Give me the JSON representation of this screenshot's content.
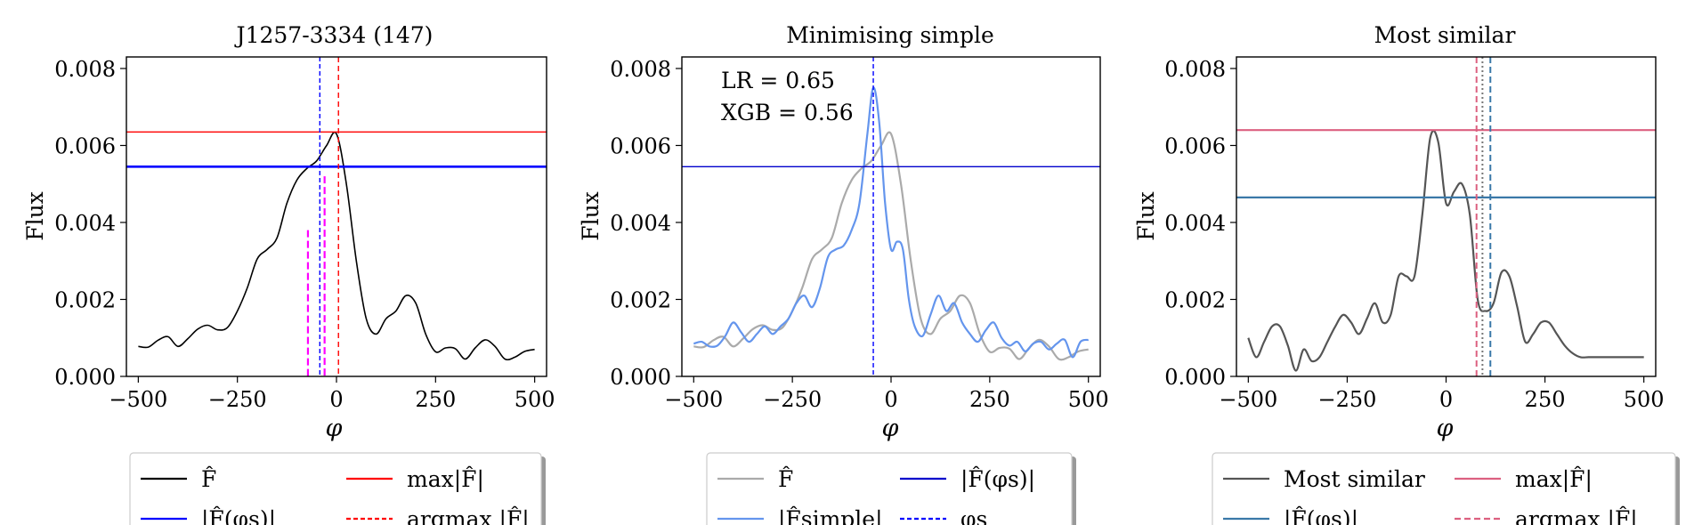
{
  "chart_data": [
    {
      "type": "line",
      "title": "J1257-3334 (147)",
      "xlabel": "φ",
      "ylabel": "Flux",
      "xlim": [
        -530,
        530
      ],
      "ylim": [
        0,
        0.0083
      ],
      "xticks": [
        -500,
        -250,
        0,
        250,
        500
      ],
      "xtick_labels": [
        "−500",
        "−250",
        "0",
        "250",
        "500"
      ],
      "yticks": [
        0,
        0.002,
        0.004,
        0.006,
        0.008
      ],
      "ytick_labels": [
        "0.000",
        "0.002",
        "0.004",
        "0.006",
        "0.008"
      ],
      "series": [
        {
          "name": "F̂",
          "color": "#000000",
          "width": 1.6,
          "x": [
            -500,
            -475,
            -450,
            -425,
            -400,
            -375,
            -350,
            -325,
            -300,
            -275,
            -250,
            -225,
            -200,
            -175,
            -150,
            -125,
            -100,
            -75,
            -50,
            -25,
            0,
            25,
            50,
            75,
            100,
            125,
            150,
            175,
            200,
            225,
            250,
            275,
            300,
            325,
            350,
            375,
            400,
            425,
            450,
            475,
            500
          ],
          "y": [
            0.00078,
            0.00076,
            0.00094,
            0.00103,
            0.00078,
            0.00098,
            0.00123,
            0.00133,
            0.00121,
            0.00127,
            0.0017,
            0.0023,
            0.00305,
            0.0033,
            0.0036,
            0.0045,
            0.0051,
            0.0054,
            0.0056,
            0.006,
            0.0063,
            0.005,
            0.003,
            0.0015,
            0.0011,
            0.0015,
            0.0017,
            0.0021,
            0.0019,
            0.0011,
            0.00064,
            0.00074,
            0.00072,
            0.00045,
            0.00074,
            0.00095,
            0.00078,
            0.00045,
            0.0005,
            0.00065,
            0.0007
          ]
        }
      ],
      "hlines": [
        {
          "name": "max|F̂|",
          "y": 0.00635,
          "color": "#ff0000",
          "width": 1.4
        },
        {
          "name": "|F̂(φs)|",
          "y": 0.00545,
          "color": "#0000ff",
          "width": 2.6
        }
      ],
      "vlines": [
        {
          "name": "argmax |F̂|",
          "x": 5,
          "color": "#ff0000",
          "dash": "6,4",
          "width": 1.4
        },
        {
          "name": "φs",
          "x": -42,
          "color": "#0000ff",
          "dash": "5,3",
          "width": 1.4
        },
        {
          "name": "magenta-a",
          "x": -72,
          "y1": 0.0038,
          "color": "#ff00ff",
          "dash": "8,4",
          "width": 2.2
        },
        {
          "name": "magenta-b",
          "x": -30,
          "y1": 0.0052,
          "color": "#ff00ff",
          "dash": "8,4",
          "width": 2.2
        }
      ],
      "legend": {
        "entries": [
          {
            "label": "F̂",
            "color": "#000000",
            "dash": ""
          },
          {
            "label": "max|F̂|",
            "color": "#ff0000",
            "dash": ""
          },
          {
            "label": "|F̂(φs)|",
            "color": "#0000ff",
            "dash": ""
          },
          {
            "label": "argmax |F̂|",
            "color": "#ff0000",
            "dash": "5,3"
          }
        ]
      },
      "annotations": []
    },
    {
      "type": "line",
      "title": "Minimising simple",
      "xlabel": "φ",
      "ylabel": "Flux",
      "xlim": [
        -530,
        530
      ],
      "ylim": [
        0,
        0.0083
      ],
      "xticks": [
        -500,
        -250,
        0,
        250,
        500
      ],
      "xtick_labels": [
        "−500",
        "−250",
        "0",
        "250",
        "500"
      ],
      "yticks": [
        0,
        0.002,
        0.004,
        0.006,
        0.008
      ],
      "ytick_labels": [
        "0.000",
        "0.002",
        "0.004",
        "0.006",
        "0.008"
      ],
      "series": [
        {
          "name": "F̂",
          "color": "#aaaaaa",
          "width": 2.2,
          "x": [
            -500,
            -475,
            -450,
            -425,
            -400,
            -375,
            -350,
            -325,
            -300,
            -275,
            -250,
            -225,
            -200,
            -175,
            -150,
            -125,
            -100,
            -75,
            -50,
            -25,
            0,
            25,
            50,
            75,
            100,
            125,
            150,
            175,
            200,
            225,
            250,
            275,
            300,
            325,
            350,
            375,
            400,
            425,
            450,
            475,
            500
          ],
          "y": [
            0.00078,
            0.00076,
            0.00094,
            0.00103,
            0.00078,
            0.00098,
            0.00123,
            0.00133,
            0.00121,
            0.00127,
            0.0017,
            0.0023,
            0.00305,
            0.0033,
            0.0036,
            0.0045,
            0.0051,
            0.0054,
            0.0056,
            0.006,
            0.0063,
            0.005,
            0.003,
            0.0015,
            0.0011,
            0.0015,
            0.0017,
            0.0021,
            0.0019,
            0.0011,
            0.00064,
            0.00074,
            0.00072,
            0.00045,
            0.00074,
            0.00095,
            0.00078,
            0.00045,
            0.0005,
            0.00065,
            0.0007
          ]
        },
        {
          "name": "|F̂simple|",
          "color": "#6495ed",
          "width": 2.2,
          "x": [
            -500,
            -480,
            -460,
            -440,
            -420,
            -400,
            -380,
            -360,
            -340,
            -320,
            -300,
            -280,
            -260,
            -240,
            -220,
            -200,
            -180,
            -160,
            -140,
            -120,
            -100,
            -80,
            -60,
            -45,
            -30,
            -15,
            0,
            15,
            30,
            45,
            60,
            80,
            100,
            120,
            140,
            160,
            180,
            200,
            220,
            240,
            260,
            280,
            300,
            320,
            340,
            360,
            380,
            400,
            420,
            440,
            460,
            480,
            500
          ],
          "y": [
            0.00085,
            0.0009,
            0.00078,
            0.0008,
            0.00105,
            0.0014,
            0.00115,
            0.0009,
            0.0011,
            0.0013,
            0.0011,
            0.0013,
            0.0015,
            0.0019,
            0.0021,
            0.0018,
            0.0023,
            0.0031,
            0.0033,
            0.0034,
            0.0038,
            0.0045,
            0.0063,
            0.0075,
            0.0066,
            0.0045,
            0.0033,
            0.0035,
            0.0033,
            0.002,
            0.0013,
            0.00105,
            0.0016,
            0.0021,
            0.0017,
            0.0019,
            0.0014,
            0.0011,
            0.0009,
            0.0012,
            0.0014,
            0.001,
            0.0008,
            0.0009,
            0.00065,
            0.00085,
            0.0009,
            0.0007,
            0.00085,
            0.00095,
            0.0005,
            0.0009,
            0.00095
          ]
        }
      ],
      "hlines": [
        {
          "name": "|F̂(φs)|",
          "y": 0.00545,
          "color": "#0000cc",
          "width": 1.4
        }
      ],
      "vlines": [
        {
          "name": "φs",
          "x": -45,
          "color": "#0000ff",
          "dash": "5,3",
          "width": 1.4
        }
      ],
      "legend": {
        "entries": [
          {
            "label": "F̂",
            "color": "#aaaaaa",
            "dash": ""
          },
          {
            "label": "|F̂(φs)|",
            "color": "#0000cc",
            "dash": ""
          },
          {
            "label": "|F̂simple|",
            "color": "#6495ed",
            "dash": ""
          },
          {
            "label": "φs",
            "color": "#0000ff",
            "dash": "5,3"
          }
        ]
      },
      "annotations": [
        "LR = 0.65",
        "XGB = 0.56"
      ]
    },
    {
      "type": "line",
      "title": "Most similar",
      "xlabel": "φ",
      "ylabel": "Flux",
      "xlim": [
        -530,
        530
      ],
      "ylim": [
        0,
        0.0083
      ],
      "xticks": [
        -500,
        -250,
        0,
        250,
        500
      ],
      "xtick_labels": [
        "−500",
        "−250",
        "0",
        "250",
        "500"
      ],
      "yticks": [
        0,
        0.002,
        0.004,
        0.006,
        0.008
      ],
      "ytick_labels": [
        "0.000",
        "0.002",
        "0.004",
        "0.006",
        "0.008"
      ],
      "series": [
        {
          "name": "Most similar",
          "color": "#555555",
          "width": 2.2,
          "x": [
            -500,
            -480,
            -460,
            -440,
            -420,
            -400,
            -380,
            -360,
            -340,
            -320,
            -300,
            -280,
            -260,
            -240,
            -220,
            -200,
            -180,
            -160,
            -140,
            -120,
            -100,
            -80,
            -60,
            -40,
            -20,
            0,
            20,
            40,
            60,
            80,
            100,
            120,
            140,
            160,
            180,
            200,
            220,
            240,
            260,
            280,
            300,
            320,
            340,
            360,
            380,
            400,
            420,
            440,
            460,
            480,
            500
          ],
          "y": [
            0.001,
            0.0005,
            0.0009,
            0.0013,
            0.0013,
            0.0008,
            0.00015,
            0.0007,
            0.0004,
            0.0005,
            0.0009,
            0.0013,
            0.0016,
            0.0014,
            0.0011,
            0.0015,
            0.0019,
            0.0014,
            0.0016,
            0.0026,
            0.0026,
            0.0026,
            0.0042,
            0.0062,
            0.0061,
            0.0045,
            0.0048,
            0.005,
            0.0042,
            0.002,
            0.0017,
            0.0019,
            0.0027,
            0.0026,
            0.0018,
            0.0009,
            0.0011,
            0.0014,
            0.0014,
            0.0011,
            0.0008,
            0.0006,
            0.0005,
            0.0005,
            0.0005,
            0.0005,
            0.0005,
            0.0005,
            0.0005,
            0.0005,
            0.0005
          ]
        }
      ],
      "hlines": [
        {
          "name": "max|F̂|",
          "y": 0.0064,
          "color": "#dc6080",
          "width": 2.2
        },
        {
          "name": "|F̂(φs)|",
          "y": 0.00465,
          "color": "#3a78a8",
          "width": 2.2
        }
      ],
      "vlines": [
        {
          "name": "argmax |F̂|",
          "x": 77,
          "color": "#dc6080",
          "dash": "7,4",
          "width": 2
        },
        {
          "name": "φs",
          "x": 112,
          "color": "#3a78a8",
          "dash": "7,4",
          "width": 2
        },
        {
          "name": "grey-dot",
          "x": 92,
          "color": "#777777",
          "dash": "2,3",
          "width": 2
        }
      ],
      "legend": {
        "entries": [
          {
            "label": "Most similar",
            "color": "#555555",
            "dash": ""
          },
          {
            "label": "max|F̂|",
            "color": "#dc6080",
            "dash": ""
          },
          {
            "label": "|F̂(φs)|",
            "color": "#3a78a8",
            "dash": ""
          },
          {
            "label": "argmax |F̂|",
            "color": "#dc6080",
            "dash": "7,4"
          }
        ]
      },
      "annotations": []
    }
  ]
}
